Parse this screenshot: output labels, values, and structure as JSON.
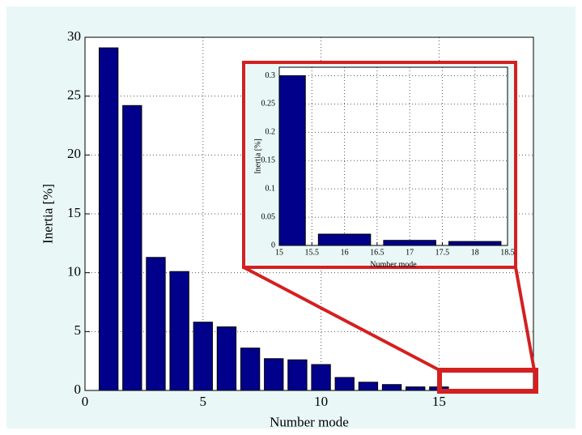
{
  "chart_data": [
    {
      "type": "bar",
      "xlabel": "Number mode",
      "ylabel": "Inertia [%]",
      "x": [
        1,
        2,
        3,
        4,
        5,
        6,
        7,
        8,
        9,
        10,
        11,
        12,
        13,
        14,
        15,
        16,
        17,
        18
      ],
      "values": [
        29.1,
        24.2,
        11.3,
        10.1,
        5.8,
        5.4,
        3.6,
        2.7,
        2.6,
        2.2,
        1.1,
        0.7,
        0.5,
        0.3,
        0.3,
        0.02,
        0.009,
        0.007
      ],
      "color": "#00008b",
      "xlim": [
        0,
        19
      ],
      "xticks": [
        0,
        5,
        10,
        15
      ],
      "ylim": [
        0,
        30
      ],
      "yticks": [
        0,
        5,
        10,
        15,
        20,
        25,
        30
      ],
      "grid": true
    },
    {
      "type": "bar",
      "xlabel": "Number mode",
      "ylabel": "Inertia [%]",
      "x": [
        15,
        16,
        17,
        18
      ],
      "values": [
        0.3,
        0.02,
        0.009,
        0.007
      ],
      "color": "#00008b",
      "xlim": [
        15,
        18.5
      ],
      "xticks": [
        15,
        15.5,
        16,
        16.5,
        17,
        17.5,
        18,
        18.5
      ],
      "ylim": [
        0,
        0.315
      ],
      "yticks": [
        0,
        0.05,
        0.1,
        0.15,
        0.2,
        0.25,
        0.3
      ],
      "grid": true
    }
  ]
}
